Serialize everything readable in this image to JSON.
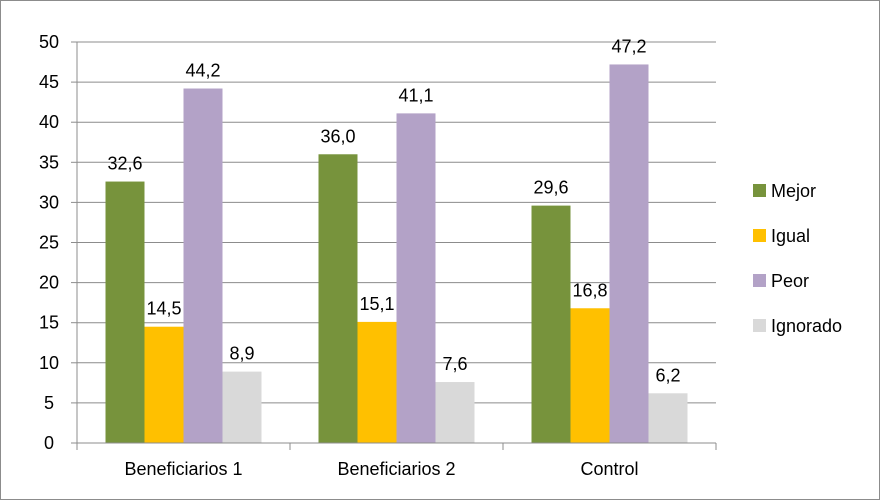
{
  "chart_data": {
    "type": "bar",
    "categories": [
      "Beneficiarios 1",
      "Beneficiarios 2",
      "Control"
    ],
    "series": [
      {
        "name": "Mejor",
        "values": [
          32.6,
          36.0,
          29.6
        ],
        "labels": [
          "32,6",
          "36,0",
          "29,6"
        ],
        "color": "#77933c"
      },
      {
        "name": "Igual",
        "values": [
          14.5,
          15.1,
          16.8
        ],
        "labels": [
          "14,5",
          "15,1",
          "16,8"
        ],
        "color": "#ffc000"
      },
      {
        "name": "Peor",
        "values": [
          44.2,
          41.1,
          47.2
        ],
        "labels": [
          "44,2",
          "41,1",
          "47,2"
        ],
        "color": "#b3a2c7"
      },
      {
        "name": "Ignorado",
        "values": [
          8.9,
          7.6,
          6.2
        ],
        "labels": [
          "8,9",
          "7,6",
          "6,2"
        ],
        "color": "#d9d9d9"
      }
    ],
    "ylim": [
      0,
      50
    ],
    "yticks": [
      0,
      5,
      10,
      15,
      20,
      25,
      30,
      35,
      40,
      45,
      50
    ],
    "grid": true,
    "legend_position": "right"
  }
}
